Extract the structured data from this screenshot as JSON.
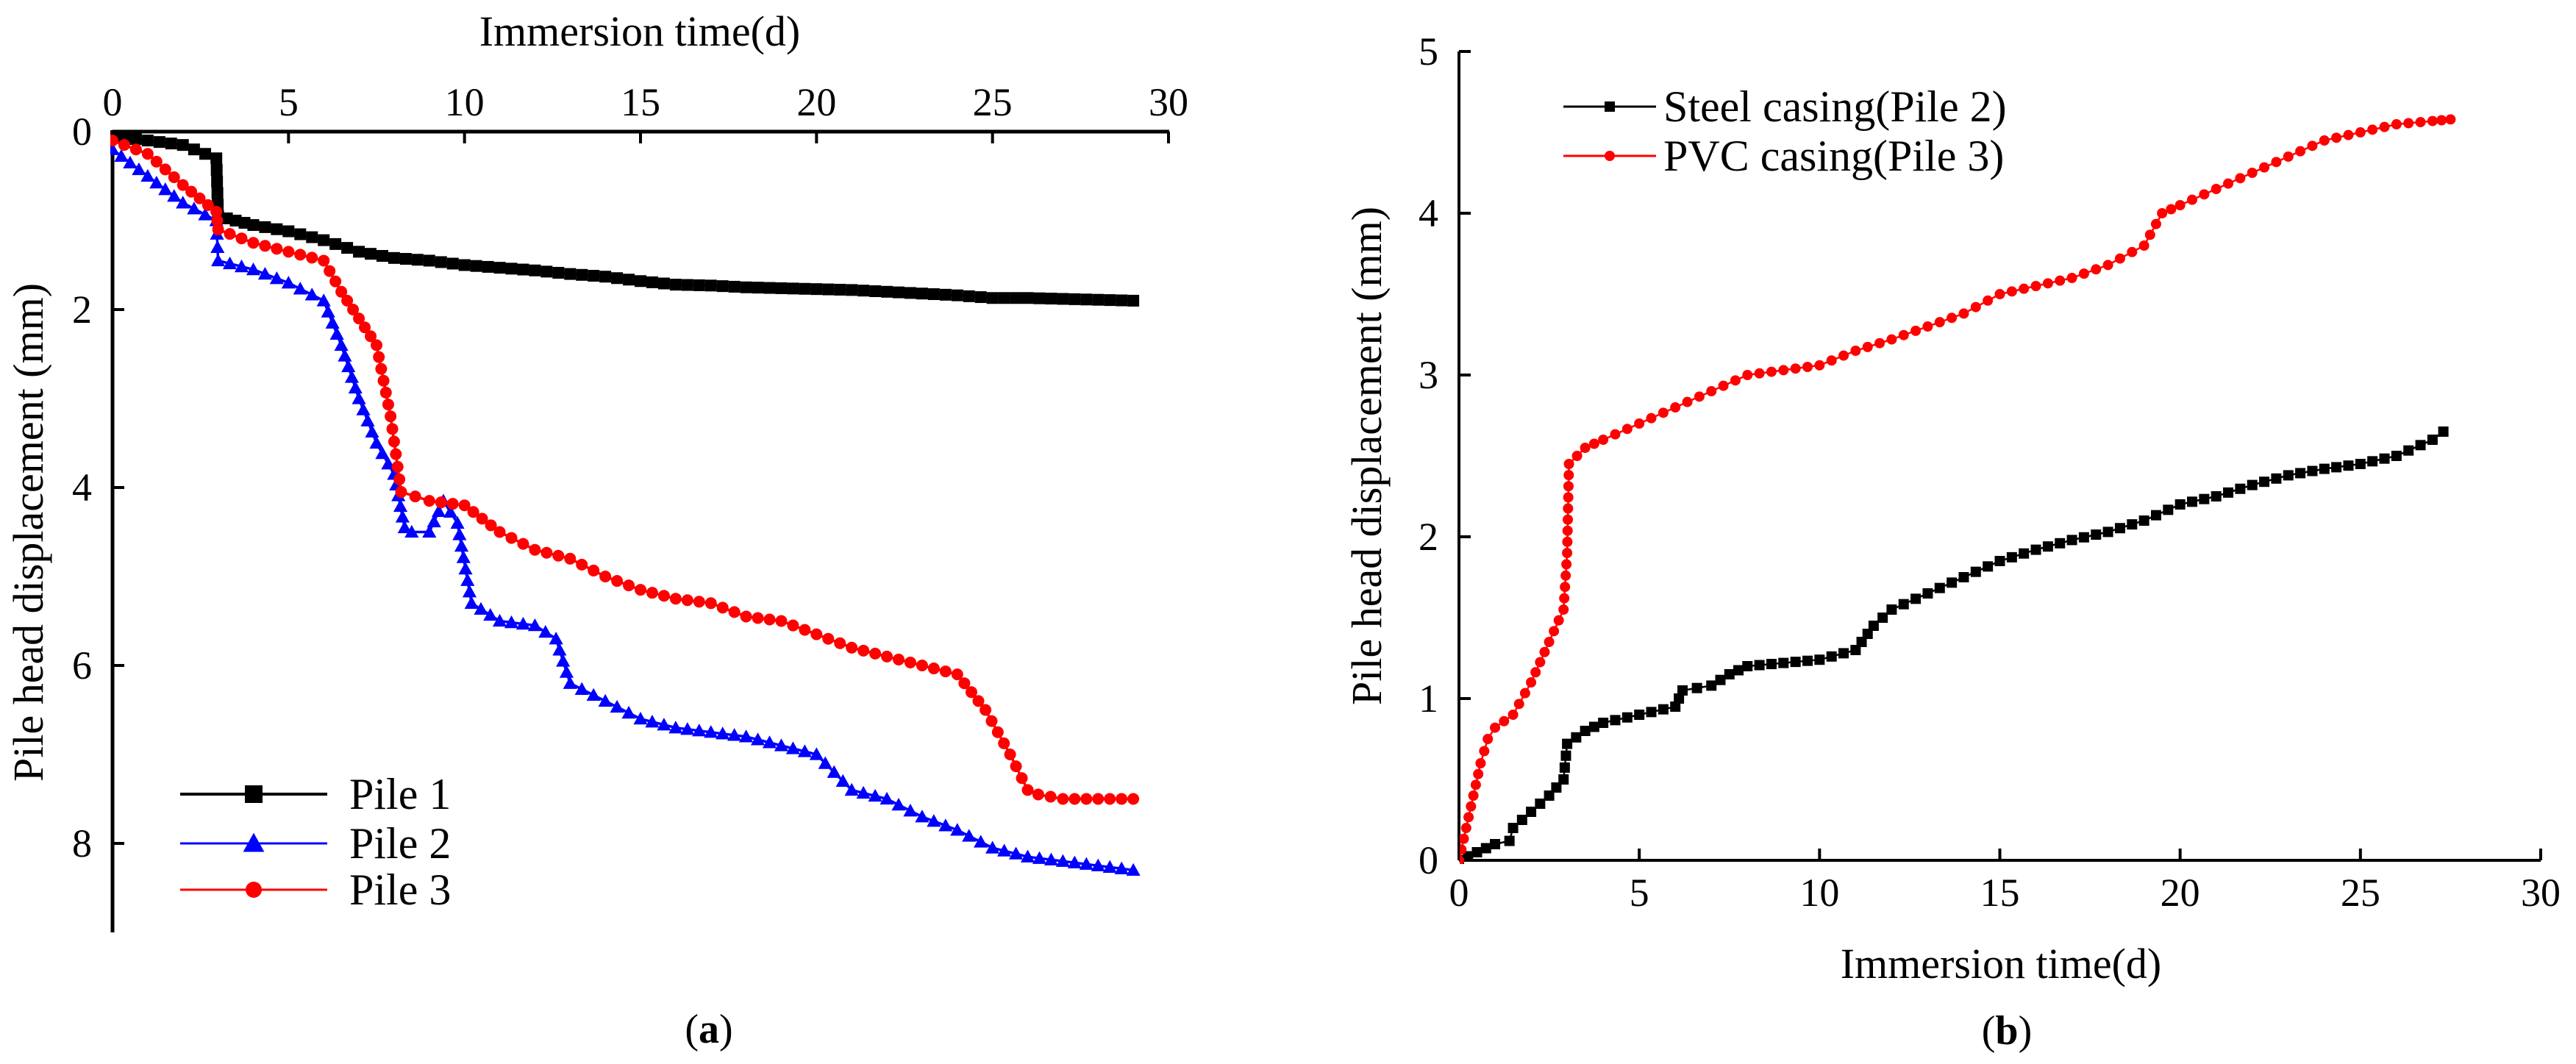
{
  "chart_data": [
    {
      "id": "a",
      "type": "line",
      "caption_open": "(",
      "caption_letter": "a",
      "caption_close": ")",
      "xlabel": "Immersion time(d)",
      "ylabel": "Pile head displacement (mm)",
      "xlim": [
        0,
        30
      ],
      "ylim": [
        0,
        9
      ],
      "y_inverted": true,
      "x_axis_position": "top",
      "xticks": [
        "0",
        "5",
        "10",
        "15",
        "20",
        "25",
        "30"
      ],
      "yticks": [
        "0",
        "2",
        "4",
        "6",
        "8"
      ],
      "legend_position": "bottom-left",
      "series": [
        {
          "name": "Pile 1",
          "color": "#000000",
          "marker": "square",
          "x": [
            0,
            1,
            2,
            2.95,
            3.0,
            3.5,
            4,
            5,
            6,
            7,
            8,
            9,
            10,
            11,
            12,
            13,
            14,
            15,
            16,
            17,
            18,
            19,
            20,
            21,
            22,
            23,
            24,
            25,
            26,
            27,
            28,
            29
          ],
          "y": [
            0.05,
            0.1,
            0.15,
            0.3,
            0.95,
            1.0,
            1.05,
            1.12,
            1.22,
            1.35,
            1.42,
            1.45,
            1.5,
            1.53,
            1.56,
            1.6,
            1.63,
            1.68,
            1.72,
            1.73,
            1.75,
            1.76,
            1.77,
            1.78,
            1.8,
            1.82,
            1.84,
            1.87,
            1.87,
            1.88,
            1.89,
            1.9
          ]
        },
        {
          "name": "Pile 2",
          "color": "#0000ff",
          "marker": "triangle",
          "x": [
            0,
            1,
            2,
            2.95,
            3.0,
            4,
            5,
            6,
            6.5,
            7,
            7.5,
            8,
            8.3,
            8.5,
            9,
            9.4,
            9.8,
            10.2,
            11,
            12,
            12.6,
            13,
            14,
            15,
            16,
            17,
            18,
            19,
            20,
            21,
            22,
            23,
            24,
            25,
            26,
            27,
            28,
            29
          ],
          "y": [
            0.2,
            0.5,
            0.8,
            1.0,
            1.45,
            1.55,
            1.7,
            1.9,
            2.4,
            3.0,
            3.5,
            3.85,
            4.45,
            4.5,
            4.5,
            4.15,
            4.4,
            5.3,
            5.5,
            5.55,
            5.7,
            6.2,
            6.4,
            6.6,
            6.7,
            6.75,
            6.8,
            6.9,
            7.0,
            7.4,
            7.5,
            7.7,
            7.85,
            8.05,
            8.15,
            8.2,
            8.25,
            8.3
          ]
        },
        {
          "name": "Pile 3",
          "color": "#ff0000",
          "marker": "circle",
          "x": [
            0,
            1,
            2,
            2.95,
            3.0,
            4,
            5,
            6,
            6.5,
            7,
            7.5,
            7.9,
            8.2,
            8.6,
            9,
            10,
            11,
            12,
            13,
            14,
            15,
            16,
            17,
            18,
            19,
            20,
            21,
            22,
            23,
            24,
            24.8,
            25.5,
            26,
            26.3,
            27,
            28,
            29
          ],
          "y": [
            0.1,
            0.25,
            0.6,
            0.9,
            1.1,
            1.25,
            1.35,
            1.45,
            1.8,
            2.1,
            2.4,
            3.2,
            4.05,
            4.1,
            4.15,
            4.2,
            4.5,
            4.7,
            4.8,
            5.0,
            5.15,
            5.25,
            5.3,
            5.45,
            5.5,
            5.65,
            5.8,
            5.9,
            6.0,
            6.1,
            6.5,
            7.0,
            7.4,
            7.45,
            7.5,
            7.5,
            7.5
          ]
        }
      ]
    },
    {
      "id": "b",
      "type": "line",
      "caption_open": "(",
      "caption_letter": "b",
      "caption_close": ")",
      "xlabel": "Immersion time(d)",
      "ylabel": "Pile head displacement (mm)",
      "xlim": [
        0,
        30
      ],
      "ylim": [
        0,
        5
      ],
      "y_inverted": false,
      "x_axis_position": "bottom",
      "xticks": [
        "0",
        "5",
        "10",
        "15",
        "20",
        "25",
        "30"
      ],
      "yticks": [
        "0",
        "1",
        "2",
        "3",
        "4",
        "5"
      ],
      "legend_position": "top-left",
      "series": [
        {
          "name": "Steel casing(Pile 2)",
          "color": "#000000",
          "marker": "square",
          "x": [
            0,
            0.5,
            1,
            1.4,
            1.5,
            2,
            2.5,
            2.9,
            3.0,
            3.5,
            4,
            5,
            6,
            6.2,
            7,
            7.5,
            8,
            9,
            10,
            11,
            11.5,
            12,
            13,
            14,
            15,
            16,
            17,
            18,
            19,
            20,
            21,
            22,
            23,
            24,
            25,
            26,
            27,
            27.3
          ],
          "y": [
            0,
            0.05,
            0.1,
            0.12,
            0.2,
            0.3,
            0.4,
            0.5,
            0.72,
            0.8,
            0.85,
            0.9,
            0.95,
            1.05,
            1.08,
            1.15,
            1.2,
            1.22,
            1.24,
            1.3,
            1.45,
            1.55,
            1.65,
            1.75,
            1.85,
            1.92,
            1.98,
            2.03,
            2.1,
            2.2,
            2.25,
            2.32,
            2.38,
            2.42,
            2.45,
            2.5,
            2.6,
            2.65
          ]
        },
        {
          "name": "PVC casing(Pile 3)",
          "color": "#ff0000",
          "marker": "circle",
          "x": [
            0,
            0.2,
            0.4,
            0.6,
            0.8,
            1,
            1.5,
            2,
            2.5,
            2.9,
            3.0,
            3.05,
            3.5,
            4,
            5,
            6,
            7,
            8,
            9,
            10,
            11,
            12,
            13,
            14,
            15,
            16,
            17,
            18,
            19,
            19.5,
            20,
            21,
            22,
            23,
            24,
            25,
            26,
            27,
            27.5
          ],
          "y": [
            0,
            0.2,
            0.4,
            0.6,
            0.75,
            0.82,
            0.9,
            1.1,
            1.35,
            1.55,
            1.9,
            2.45,
            2.55,
            2.6,
            2.7,
            2.8,
            2.9,
            3.0,
            3.03,
            3.06,
            3.15,
            3.22,
            3.3,
            3.38,
            3.5,
            3.55,
            3.6,
            3.68,
            3.8,
            4.0,
            4.05,
            4.15,
            4.25,
            4.35,
            4.45,
            4.5,
            4.55,
            4.57,
            4.58
          ]
        }
      ]
    }
  ]
}
